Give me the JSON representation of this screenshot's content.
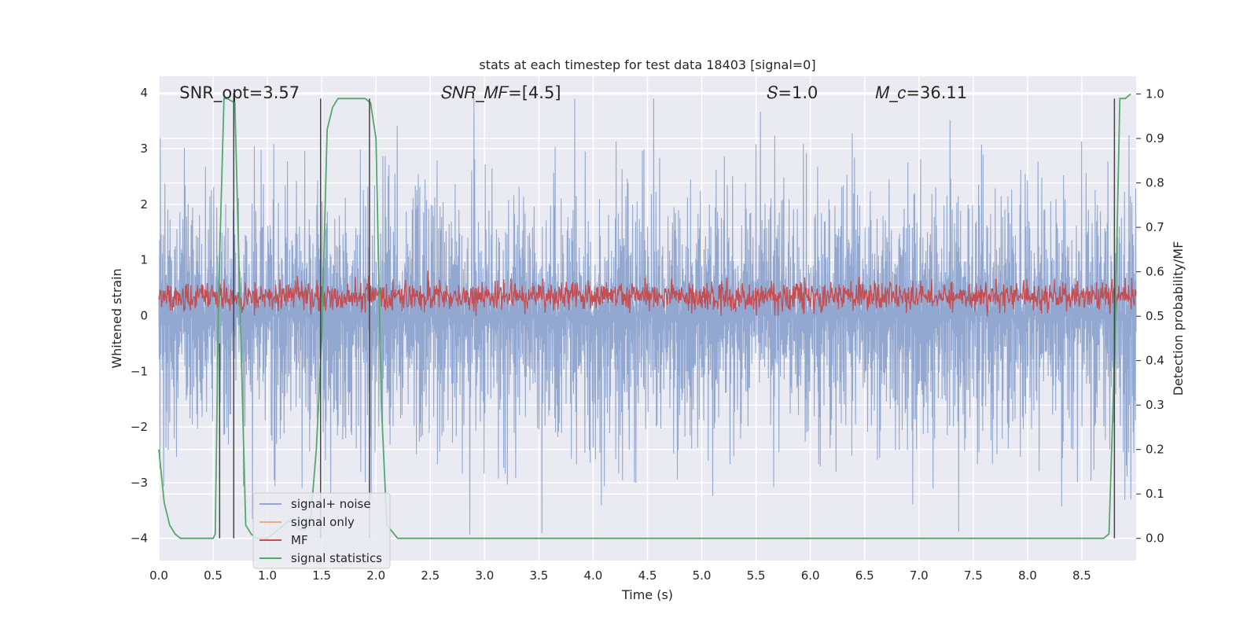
{
  "chart_data": {
    "type": "line",
    "title": "stats at each timestep for test data 18403 [signal=0]",
    "xlabel": "Time (s)",
    "ylabel_left": "Whitened strain",
    "ylabel_right": "Detection probability/MF",
    "xlim": [
      0,
      9.0
    ],
    "ylim_left": [
      -4.4,
      4.3
    ],
    "ylim_right": [
      -0.05,
      1.04
    ],
    "x_ticks": [
      "0.0",
      "0.5",
      "1.0",
      "1.5",
      "2.0",
      "2.5",
      "3.0",
      "3.5",
      "4.0",
      "4.5",
      "5.0",
      "5.5",
      "6.0",
      "6.5",
      "7.0",
      "7.5",
      "8.0",
      "8.5"
    ],
    "y_ticks_left": [
      "−4",
      "−3",
      "−2",
      "−1",
      "0",
      "1",
      "2",
      "3",
      "4"
    ],
    "y_ticks_right": [
      "0.0",
      "0.1",
      "0.2",
      "0.3",
      "0.4",
      "0.5",
      "0.6",
      "0.7",
      "0.8",
      "0.9",
      "1.0"
    ],
    "grid": true,
    "legend_position": "lower-left",
    "annotations": [
      {
        "id": "snr_opt",
        "x": 0.19,
        "y": 4.0,
        "text": "SNR_opt=3.57"
      },
      {
        "id": "snr_mf",
        "x": 2.6,
        "y": 4.0,
        "text": "𝑆𝑁𝑅_𝑀𝐹=[4.5]"
      },
      {
        "id": "s",
        "x": 5.6,
        "y": 4.0,
        "text": "𝑆=1.0"
      },
      {
        "id": "mc",
        "x": 6.6,
        "y": 4.0,
        "text": "𝑀_𝑐=36.11"
      }
    ],
    "series": [
      {
        "name": "signal+ noise",
        "color": "#92a8d1",
        "axis": "left",
        "kind": "noise",
        "abs_envelope": 2.4,
        "pos_max": 3.9,
        "neg_min": -4.0,
        "n_points": 2600
      },
      {
        "name": "signal only",
        "color": "#f0a88a",
        "axis": "left",
        "kind": "flat",
        "values": []
      },
      {
        "name": "MF",
        "color": "#c44e52",
        "axis": "right",
        "kind": "mf_band",
        "center": 0.545,
        "spread": 0.04,
        "max": 0.63,
        "min": 0.5,
        "n_points": 1800
      },
      {
        "name": "signal statistics",
        "color": "#55a868",
        "axis": "right",
        "x": [
          0.0,
          0.05,
          0.1,
          0.15,
          0.2,
          0.3,
          0.4,
          0.45,
          0.5,
          0.52,
          0.55,
          0.6,
          0.63,
          0.7,
          0.75,
          0.8,
          0.85,
          0.9,
          0.95,
          1.0,
          1.05,
          1.1,
          1.15,
          1.2,
          1.25,
          1.3,
          1.35,
          1.4,
          1.45,
          1.5,
          1.55,
          1.6,
          1.65,
          1.7,
          1.8,
          1.9,
          1.95,
          2.0,
          2.05,
          2.1,
          2.2,
          2.5,
          3.0,
          4.0,
          5.0,
          6.0,
          7.0,
          8.0,
          8.5,
          8.7,
          8.75,
          8.8,
          8.85,
          8.9,
          8.95
        ],
        "values": [
          0.2,
          0.08,
          0.03,
          0.01,
          0.0,
          0.0,
          0.0,
          0.0,
          0.0,
          0.01,
          0.55,
          0.99,
          0.99,
          0.98,
          0.5,
          0.03,
          0.01,
          0.0,
          0.0,
          0.0,
          0.01,
          0.02,
          0.03,
          0.04,
          0.03,
          0.02,
          0.02,
          0.05,
          0.2,
          0.45,
          0.92,
          0.97,
          0.99,
          0.99,
          0.99,
          0.99,
          0.98,
          0.9,
          0.3,
          0.03,
          0.0,
          0.0,
          0.0,
          0.0,
          0.0,
          0.0,
          0.0,
          0.0,
          0.0,
          0.0,
          0.01,
          0.4,
          0.99,
          0.99,
          1.0
        ]
      }
    ],
    "vertical_lines": [
      {
        "x": 0.56,
        "y0": -4.0,
        "y1": -0.5,
        "color": "#444444"
      },
      {
        "x": 0.69,
        "y0": -4.0,
        "y1": 4.0,
        "color": "#444444"
      },
      {
        "x": 1.49,
        "y0": -4.0,
        "y1": 3.9,
        "color": "#444444"
      },
      {
        "x": 1.94,
        "y0": -4.0,
        "y1": 3.9,
        "color": "#444444"
      },
      {
        "x": 8.8,
        "y0": -4.0,
        "y1": 3.9,
        "color": "#444444"
      }
    ]
  }
}
